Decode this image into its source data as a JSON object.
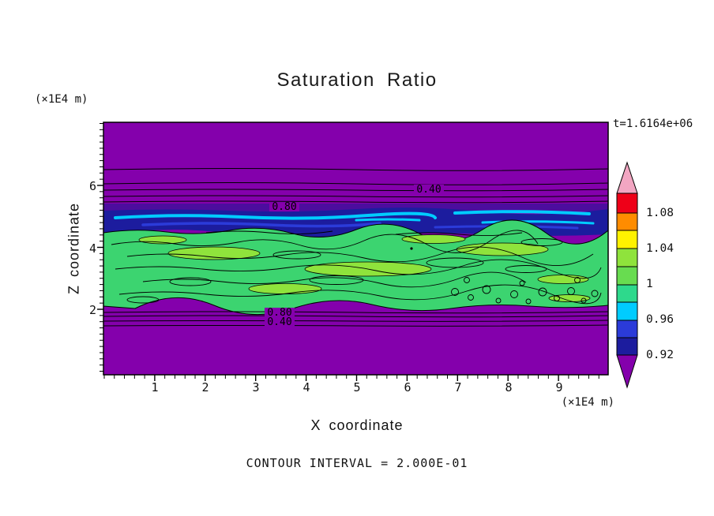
{
  "chart_data": {
    "type": "contour",
    "title": "Saturation Ratio",
    "time_annotation": "t=1.6164e+06",
    "xlabel": "X coordinate",
    "ylabel": "Z coordinate",
    "x_unit_label": "(×1E4 m)",
    "y_unit_label": "(×1E4 m)",
    "x_ticks": [
      "1",
      "2",
      "3",
      "4",
      "5",
      "6",
      "7",
      "8",
      "9"
    ],
    "y_ticks": [
      "6",
      "4",
      "2"
    ],
    "x_range_x1e4_m": [
      0,
      10
    ],
    "y_range_x1e4_m": [
      0,
      7
    ],
    "contour_interval": 0.2,
    "contour_interval_label": "CONTOUR INTERVAL = 2.000E-01",
    "contour_labels": [
      "0.40",
      "0.80",
      "0.80",
      "0.40"
    ],
    "colorbar": {
      "labels": [
        "1.08",
        "1.04",
        "1",
        "0.96",
        "0.92"
      ],
      "colors_top_to_bottom": [
        "#F2A6C2",
        "#EE0018",
        "#FF8C00",
        "#FFF200",
        "#8FE33C",
        "#68DC50",
        "#2ED98C",
        "#00CCFF",
        "#2B3BD9",
        "#1C1C9E",
        "#8400AC"
      ]
    },
    "palette": {
      "purple": "#8400AC",
      "dark_violet": "#4C0D9E",
      "navy": "#1C1C9E",
      "blue": "#2B3BD9",
      "cyan": "#00CCFF",
      "green": "#3CD470",
      "yellow_green": "#8FE33C",
      "contour_line": "#000000"
    },
    "field_summary": {
      "description": "Saturation ratio over an X–Z vertical slice. Low values (purple, <0.4) fill the upper region (z>5.3) and lower region (z<1.9). Thin 0.40 and 0.80 contours run horizontally above and below the moist layer. A narrow navy/cyan band (~0.9-0.96) sits near z≈5. A broad band between z≈2 and z≈4.8 is near saturation (~1.0, greens) with fine turbulent contour structure.",
      "bands": [
        {
          "z_range_x1e4_m": [
            5.3,
            7.0
          ],
          "approx_value": "<0.4",
          "color": "purple"
        },
        {
          "z_range_x1e4_m": [
            4.8,
            5.3
          ],
          "approx_value": "0.9-0.96",
          "color": "navy/cyan"
        },
        {
          "z_range_x1e4_m": [
            2.0,
            4.8
          ],
          "approx_value": "~1.0",
          "color": "green"
        },
        {
          "z_range_x1e4_m": [
            0.0,
            2.0
          ],
          "approx_value": "<0.4",
          "color": "purple"
        }
      ]
    }
  }
}
